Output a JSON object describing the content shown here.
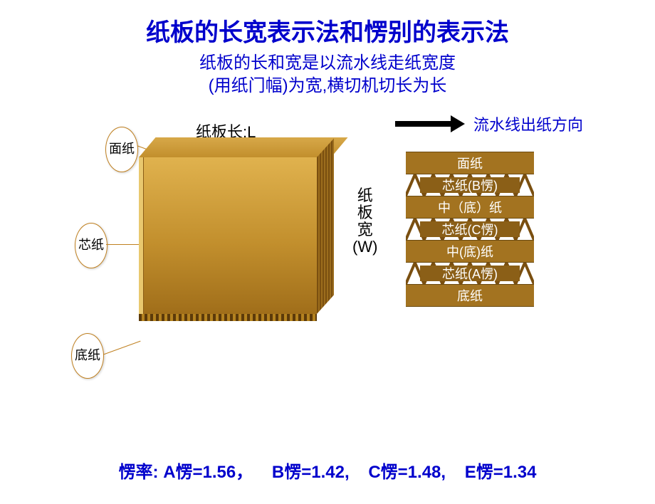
{
  "title": "纸板的长宽表示法和愣别的表示法",
  "subtitle_line1": "纸板的长和宽是以流水线走纸宽度",
  "subtitle_line2": "(用纸门幅)为宽,横切机切长为长",
  "callouts": {
    "top": "面纸",
    "mid": "芯纸",
    "bottom": "底纸"
  },
  "board_labels": {
    "length": "纸板长:L",
    "width_v": "纸板宽(W)"
  },
  "arrow_label": "流水线出纸方向",
  "stack_layers": [
    {
      "type": "flat",
      "label": "面纸"
    },
    {
      "type": "flute",
      "label": "芯纸(B愣)"
    },
    {
      "type": "flat",
      "label": "中（底）纸"
    },
    {
      "type": "flute",
      "label": "芯纸(C愣)"
    },
    {
      "type": "flat",
      "label": "中(底)纸"
    },
    {
      "type": "flute",
      "label": "芯纸(A愣)"
    },
    {
      "type": "flat",
      "label": "底纸"
    }
  ],
  "flute_rates": {
    "prefix": "愣率: ",
    "a": "A愣=1.56，",
    "b": "B愣=1.42,",
    "c": "C愣=1.48,",
    "e": "E愣=1.34"
  },
  "colors": {
    "title_color": "#0000cc",
    "flat_layer_bg": "#a37320",
    "flute_stroke": "#7a4f10",
    "board_light": "#e0b24e",
    "board_dark": "#a06e1a"
  }
}
